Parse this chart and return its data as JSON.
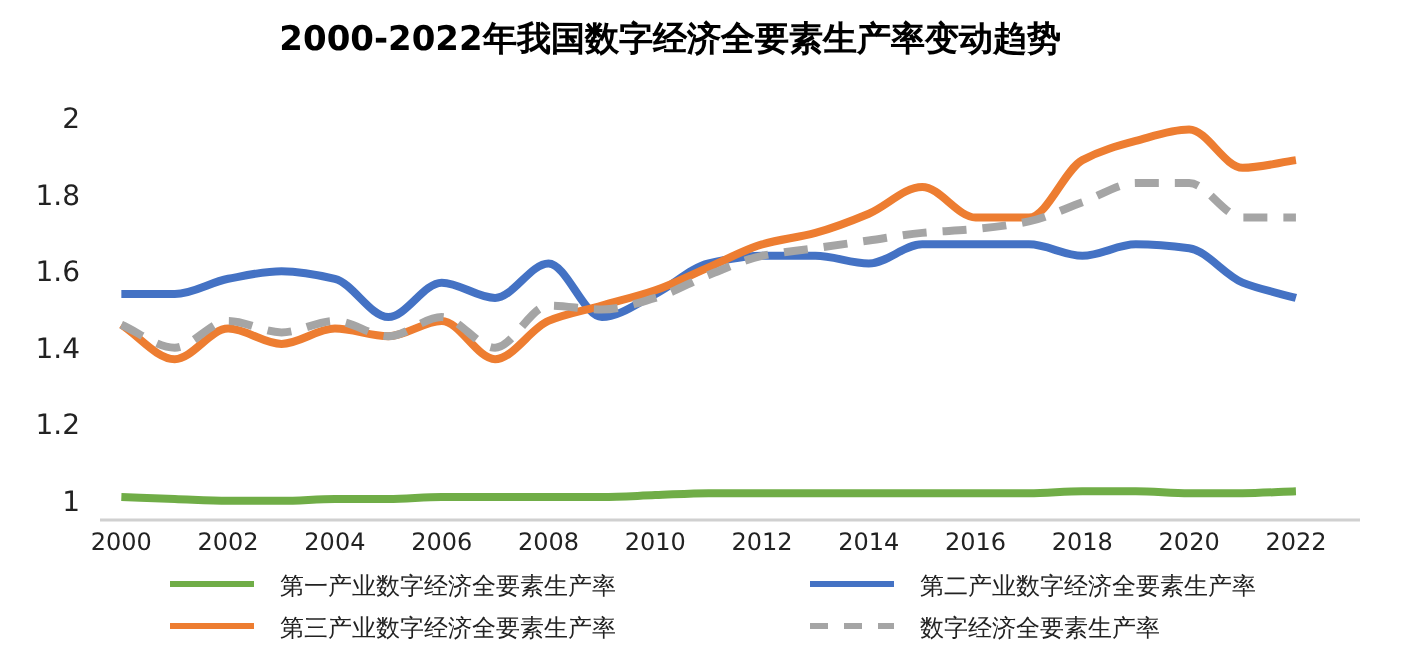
{
  "chart_data": {
    "type": "line",
    "title": "2000-2022年我国数字经济全要素生产率变动趋势",
    "x": [
      2000,
      2001,
      2002,
      2003,
      2004,
      2005,
      2006,
      2007,
      2008,
      2009,
      2010,
      2011,
      2012,
      2013,
      2014,
      2015,
      2016,
      2017,
      2018,
      2019,
      2020,
      2021,
      2022
    ],
    "xlim": [
      1999.6,
      2023.2
    ],
    "xticks": [
      2000,
      2002,
      2004,
      2006,
      2008,
      2010,
      2012,
      2014,
      2016,
      2018,
      2020,
      2022
    ],
    "ylim": [
      0.95,
      2
    ],
    "yticks": [
      1,
      1.2,
      1.4,
      1.6,
      1.8,
      2
    ],
    "grid": false,
    "legend": "bottom",
    "marker": "none",
    "series": [
      {
        "name": "第一产业数字经济全要素生产率",
        "color": "#70ad47",
        "line_style": "solid",
        "values": [
          1.01,
          1.005,
          1.0,
          1.0,
          1.005,
          1.005,
          1.01,
          1.01,
          1.01,
          1.01,
          1.015,
          1.02,
          1.02,
          1.02,
          1.02,
          1.02,
          1.02,
          1.02,
          1.025,
          1.025,
          1.02,
          1.02,
          1.025
        ]
      },
      {
        "name": "第二产业数字经济全要素生产率",
        "color": "#4472c4",
        "line_style": "solid",
        "values": [
          1.54,
          1.54,
          1.58,
          1.6,
          1.58,
          1.48,
          1.57,
          1.53,
          1.62,
          1.48,
          1.54,
          1.62,
          1.64,
          1.64,
          1.62,
          1.67,
          1.67,
          1.67,
          1.64,
          1.67,
          1.66,
          1.57,
          1.53
        ]
      },
      {
        "name": "第三产业数字经济全要素生产率",
        "color": "#ed7d31",
        "line_style": "solid",
        "values": [
          1.46,
          1.37,
          1.45,
          1.41,
          1.45,
          1.43,
          1.47,
          1.37,
          1.47,
          1.51,
          1.55,
          1.61,
          1.67,
          1.7,
          1.75,
          1.82,
          1.74,
          1.74,
          1.89,
          1.94,
          1.97,
          1.87,
          1.89
        ]
      },
      {
        "name": "数字经济全要素生产率",
        "color": "#a5a5a5",
        "line_style": "dashed",
        "values": [
          1.46,
          1.4,
          1.47,
          1.44,
          1.47,
          1.43,
          1.48,
          1.4,
          1.51,
          1.5,
          1.53,
          1.59,
          1.64,
          1.66,
          1.68,
          1.7,
          1.71,
          1.73,
          1.78,
          1.83,
          1.83,
          1.74,
          1.74
        ]
      }
    ]
  }
}
